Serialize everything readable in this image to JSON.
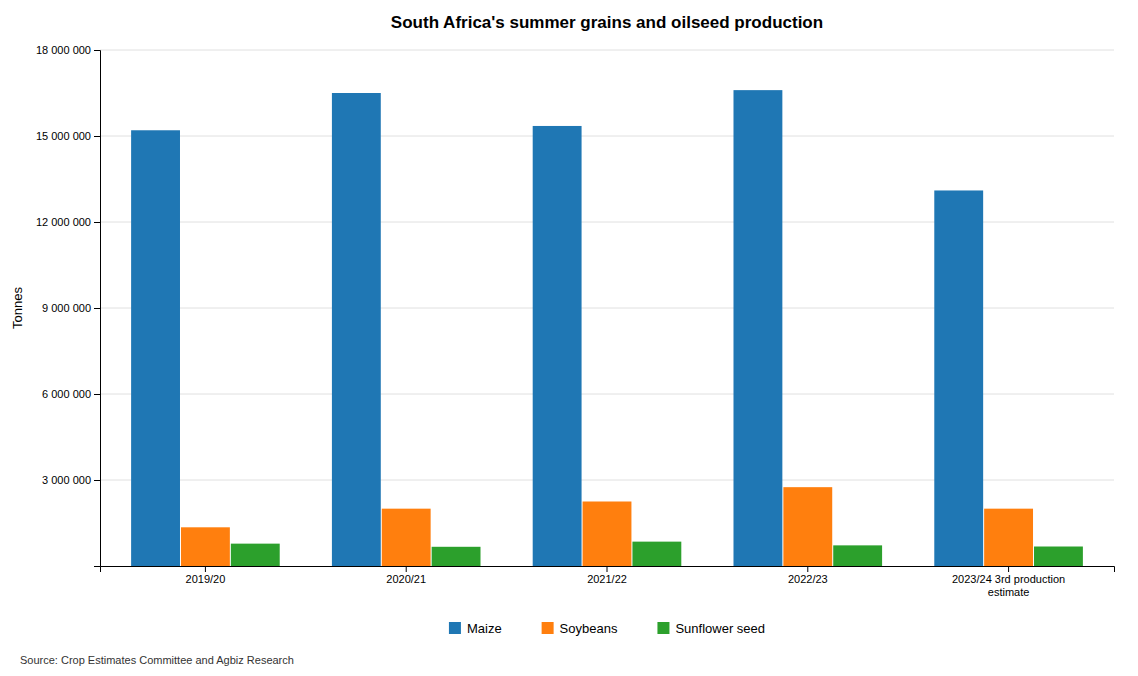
{
  "chart_data": {
    "type": "bar",
    "title": "South Africa's summer grains and oilseed production",
    "ylabel": "Tonnes",
    "source": "Source: Crop Estimates Committee and Agbiz Research",
    "categories": [
      "2019/20",
      "2020/21",
      "2021/22",
      "2022/23",
      "2023/24 3rd production\nestimate"
    ],
    "series": [
      {
        "name": "Maize",
        "values": [
          15200000,
          16500000,
          15350000,
          16600000,
          13100000
        ]
      },
      {
        "name": "Soybeans",
        "values": [
          1350000,
          2000000,
          2250000,
          2750000,
          2000000
        ]
      },
      {
        "name": "Sunflower seed",
        "values": [
          780000,
          670000,
          850000,
          720000,
          680000
        ]
      }
    ],
    "ylim": [
      0,
      18000000
    ],
    "yticks": [
      {
        "value": 3000000,
        "label": "3 000 000"
      },
      {
        "value": 6000000,
        "label": "6 000 000"
      },
      {
        "value": 9000000,
        "label": "9 000 000"
      },
      {
        "value": 12000000,
        "label": "12 000 000"
      },
      {
        "value": 15000000,
        "label": "15 000 000"
      },
      {
        "value": 18000000,
        "label": "18 000 000"
      }
    ],
    "grid": true,
    "legend": "bottom"
  }
}
